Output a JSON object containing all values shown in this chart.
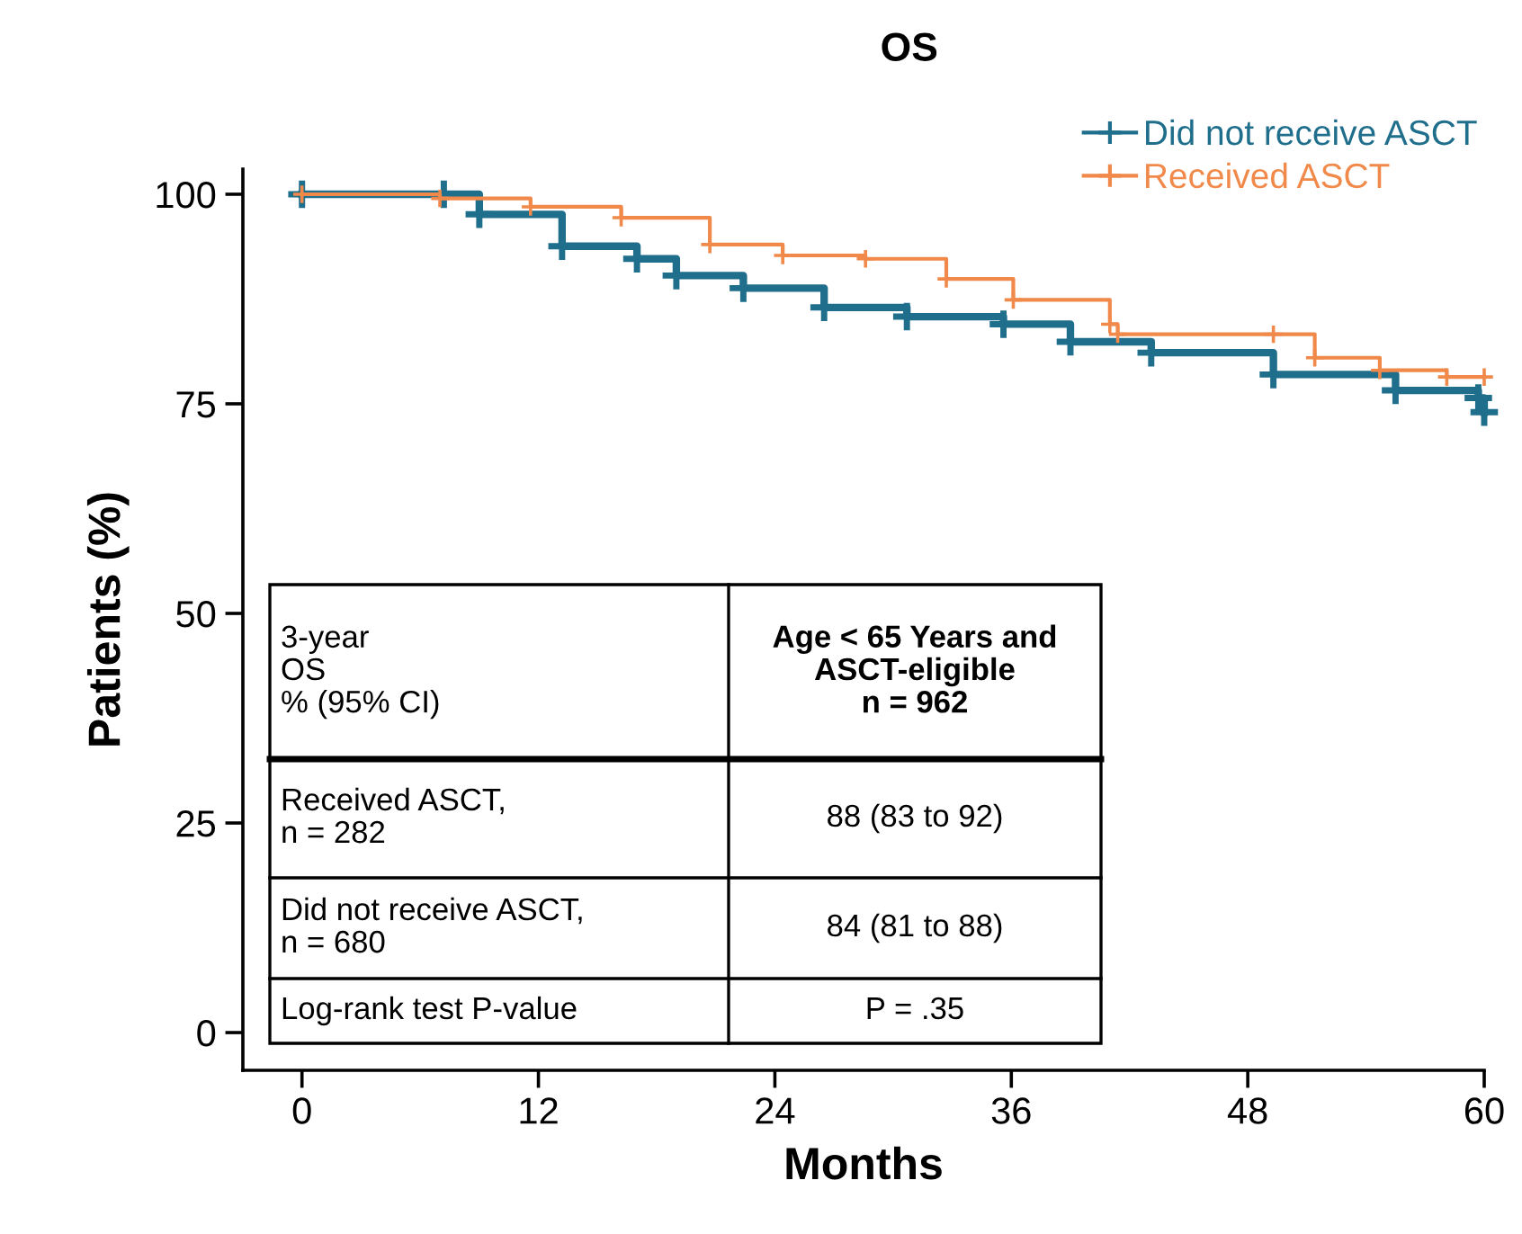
{
  "chart_data": {
    "type": "step",
    "title": "OS",
    "xlabel": "Months",
    "ylabel": "Patients (%)",
    "xlim": [
      -3,
      60
    ],
    "ylim": [
      -4.5,
      103
    ],
    "xticks": [
      0,
      12,
      24,
      36,
      48,
      60
    ],
    "yticks": [
      0,
      25,
      50,
      75,
      100
    ],
    "grid": false,
    "legend": "top right",
    "marker": "cross",
    "line_style": "solid",
    "series": [
      {
        "name": "Did not receive ASCT",
        "color": "#1f6e8c",
        "x": [
          0,
          7.2,
          9.0,
          13.2,
          17.0,
          19.0,
          22.4,
          26.5,
          30.7,
          35.6,
          39.0,
          43.1,
          49.3,
          55.5,
          59.7,
          60
        ],
        "values": [
          100,
          100,
          97.6,
          93.8,
          92.3,
          90.3,
          88.8,
          86.5,
          85.4,
          84.5,
          82.4,
          81.1,
          78.5,
          76.6,
          75.7,
          74
        ]
      },
      {
        "name": "Received ASCT",
        "color": "#f0894a",
        "x": [
          0,
          7.0,
          11.6,
          16.2,
          20.7,
          24.4,
          28.6,
          32.7,
          36.1,
          41.0,
          41.4,
          49.3,
          51.4,
          54.7,
          58.1,
          60
        ],
        "values": [
          100,
          99.5,
          98.5,
          97.2,
          94.0,
          92.7,
          92.3,
          89.9,
          87.4,
          84.5,
          83.3,
          83.3,
          80.5,
          79.0,
          78.2,
          78.2
        ]
      }
    ],
    "annotations": [
      "3-year\nOS\n% (95% CI)",
      "Age < 65 Years and\nASCT-eligible\nn = 962",
      "Received ASCT,\nn = 282",
      "88 (83 to 92)",
      "Did not receive ASCT,\nn = 680",
      "84 (81 to 88)",
      "Log-rank test P-value",
      "P = .35"
    ]
  }
}
